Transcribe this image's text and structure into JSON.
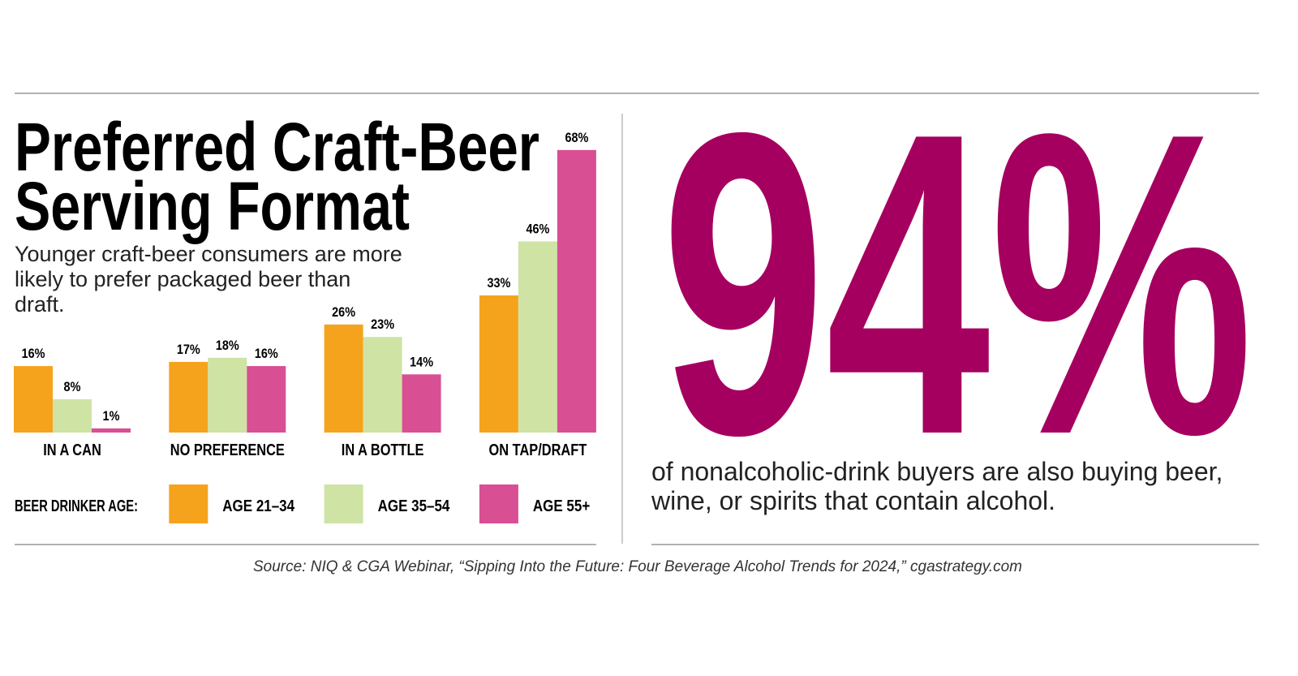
{
  "chart_data": {
    "type": "bar",
    "title": [
      "Preferred Craft-Beer",
      "Serving Format"
    ],
    "subtitle": "Younger craft-beer consumers are more likely to prefer packaged beer than draft.",
    "categories": [
      "IN A CAN",
      "NO PREFERENCE",
      "IN A BOTTLE",
      "ON TAP/DRAFT"
    ],
    "legend_title": "BEER DRINKER AGE:",
    "series": [
      {
        "name": "AGE 21–34",
        "color": "#f5a31d",
        "values": [
          16,
          17,
          26,
          33
        ],
        "value_labels": [
          "16%",
          "17%",
          "26%",
          "33%"
        ]
      },
      {
        "name": "AGE 35–54",
        "color": "#cfe3a5",
        "values": [
          8,
          18,
          23,
          46
        ],
        "value_labels": [
          "8%",
          "18%",
          "23%",
          "46%"
        ]
      },
      {
        "name": "AGE 55+",
        "color": "#d94f94",
        "values": [
          1,
          16,
          14,
          68
        ],
        "value_labels": [
          "1%",
          "16%",
          "14%",
          "68%"
        ]
      }
    ]
  },
  "stat": {
    "figure": "94%",
    "color": "#a5005f",
    "text": "of nonalcoholic-drink buyers are also buying beer, wine, or spirits that contain alcohol."
  },
  "source": "Source: NIQ & CGA Webinar, “Sipping Into the Future: Four Beverage Alcohol Trends for 2024,” cgastrategy.com"
}
